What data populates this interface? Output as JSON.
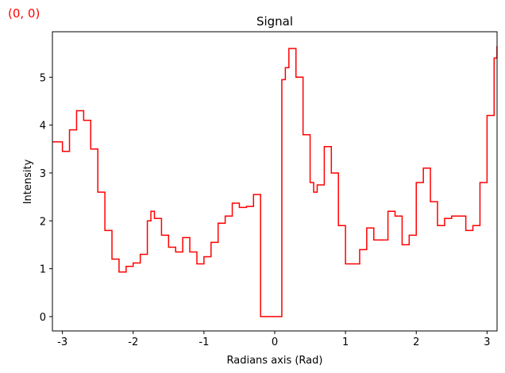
{
  "chart_data": {
    "type": "line",
    "drawstyle": "steps-post",
    "title": "Signal",
    "annotation": "(0, 0)",
    "annotation_color": "#ff0000",
    "x_label": "Radians axis (Rad)",
    "y_label": "Intensity",
    "x": [
      -3.14,
      -3.0,
      -2.9,
      -2.8,
      -2.7,
      -2.6,
      -2.5,
      -2.4,
      -2.3,
      -2.2,
      -2.1,
      -2.0,
      -1.9,
      -1.8,
      -1.75,
      -1.7,
      -1.6,
      -1.5,
      -1.4,
      -1.3,
      -1.2,
      -1.1,
      -1.0,
      -0.9,
      -0.8,
      -0.7,
      -0.6,
      -0.5,
      -0.4,
      -0.3,
      -0.2,
      0.1,
      0.15,
      0.2,
      0.3,
      0.4,
      0.5,
      0.55,
      0.6,
      0.7,
      0.8,
      0.9,
      1.0,
      1.1,
      1.2,
      1.3,
      1.4,
      1.5,
      1.6,
      1.7,
      1.8,
      1.9,
      2.0,
      2.1,
      2.2,
      2.3,
      2.4,
      2.5,
      2.6,
      2.7,
      2.8,
      2.9,
      3.0,
      3.1,
      3.14
    ],
    "series": [
      {
        "name": "Signal",
        "color": "#ff0000",
        "values": [
          3.65,
          3.45,
          3.9,
          4.3,
          4.1,
          3.5,
          2.6,
          1.8,
          1.2,
          0.93,
          1.05,
          1.12,
          1.3,
          2.0,
          2.2,
          2.05,
          1.7,
          1.45,
          1.35,
          1.65,
          1.35,
          1.1,
          1.25,
          1.55,
          1.95,
          2.1,
          2.37,
          2.28,
          2.3,
          2.55,
          0,
          4.95,
          5.2,
          5.6,
          5.0,
          3.8,
          2.8,
          2.6,
          2.75,
          3.55,
          3.0,
          1.9,
          1.1,
          1.1,
          1.4,
          1.85,
          1.6,
          1.6,
          2.2,
          2.1,
          1.5,
          1.7,
          2.8,
          3.1,
          2.4,
          1.9,
          2.05,
          2.1,
          2.1,
          1.8,
          1.9,
          2.8,
          4.2,
          5.4,
          5.65
        ]
      }
    ],
    "xlim": [
      -3.1416,
      3.1416
    ],
    "xticks": [
      -3,
      -2,
      -1,
      0,
      1,
      2,
      3
    ],
    "ylim": [
      -0.3,
      5.95
    ],
    "yticks": [
      0,
      1,
      2,
      3,
      4,
      5
    ],
    "grid": false
  }
}
